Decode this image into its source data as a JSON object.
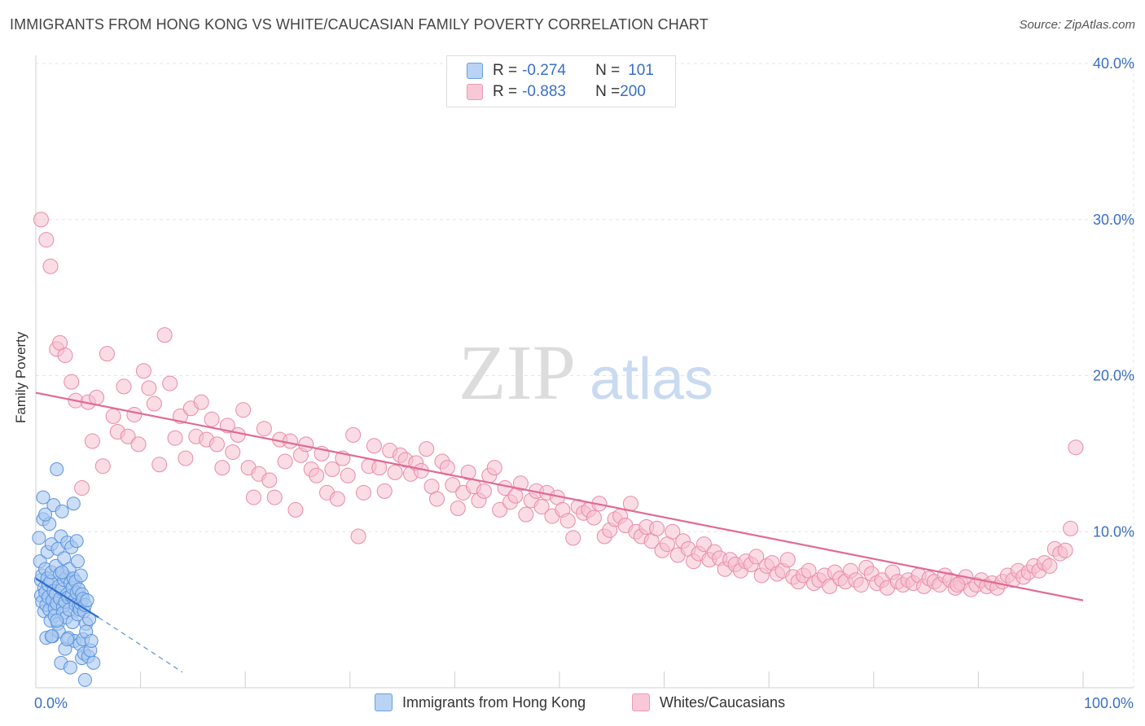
{
  "title": "IMMIGRANTS FROM HONG KONG VS WHITE/CAUCASIAN FAMILY POVERTY CORRELATION CHART",
  "source": "Source: ZipAtlas.com",
  "watermark": {
    "zip": "ZIP",
    "atlas": "atlas"
  },
  "colors": {
    "blue_fill": "#a8c8f0",
    "blue_stroke": "#5b93dc",
    "blue_line": "#2f6fd1",
    "pink_fill": "#f6bfd0",
    "pink_stroke": "#e98aa8",
    "pink_line": "#e06a96",
    "axis_text": "#3a6fc4",
    "grid": "#e4e4e4"
  },
  "legend": {
    "rows": [
      {
        "r_label": "R = ",
        "r_value": "-0.274",
        "n_label": "N = ",
        "n_value": "101"
      },
      {
        "r_label": "R = ",
        "r_value": "-0.883",
        "n_label": "N = ",
        "n_value": "200"
      }
    ]
  },
  "bottom_legend": {
    "series_blue": "Immigrants from Hong Kong",
    "series_pink": "Whites/Caucasians"
  },
  "chart_data": {
    "type": "scatter",
    "title": "IMMIGRANTS FROM HONG KONG VS WHITE/CAUCASIAN FAMILY POVERTY CORRELATION CHART",
    "xlabel": "",
    "ylabel": "Family Poverty",
    "xlim": [
      0,
      100
    ],
    "ylim": [
      0,
      40
    ],
    "x_tick_labels": [
      "0.0%",
      "100.0%"
    ],
    "y_ticks": [
      10,
      20,
      30,
      40
    ],
    "y_tick_labels": [
      "10.0%",
      "20.0%",
      "30.0%",
      "40.0%"
    ],
    "grid": true,
    "legend_position": "top-center",
    "series": [
      {
        "name": "Immigrants from Hong Kong",
        "r": -0.274,
        "n": 101,
        "trend": {
          "x": [
            0,
            6
          ],
          "y": [
            7.0,
            4.5
          ],
          "dashed_extension_to": [
            14,
            1.0
          ]
        },
        "points": [
          [
            0.3,
            9.6
          ],
          [
            0.4,
            8.1
          ],
          [
            0.5,
            6.9
          ],
          [
            0.5,
            5.9
          ],
          [
            0.6,
            7.2
          ],
          [
            0.6,
            5.5
          ],
          [
            0.7,
            12.2
          ],
          [
            0.7,
            10.8
          ],
          [
            0.8,
            6.4
          ],
          [
            0.8,
            4.9
          ],
          [
            0.9,
            7.6
          ],
          [
            0.9,
            6.1
          ],
          [
            1.0,
            5.3
          ],
          [
            1.0,
            3.2
          ],
          [
            1.1,
            8.7
          ],
          [
            1.1,
            7.0
          ],
          [
            1.2,
            6.6
          ],
          [
            1.2,
            5.8
          ],
          [
            1.3,
            10.5
          ],
          [
            1.3,
            5.0
          ],
          [
            1.4,
            6.8
          ],
          [
            1.4,
            4.3
          ],
          [
            1.5,
            9.2
          ],
          [
            1.5,
            7.4
          ],
          [
            1.6,
            5.6
          ],
          [
            1.6,
            3.3
          ],
          [
            1.7,
            11.7
          ],
          [
            1.7,
            6.2
          ],
          [
            1.8,
            5.1
          ],
          [
            1.8,
            4.6
          ],
          [
            1.9,
            7.8
          ],
          [
            1.9,
            6.0
          ],
          [
            2.0,
            14.0
          ],
          [
            2.0,
            5.4
          ],
          [
            2.1,
            8.9
          ],
          [
            2.1,
            4.1
          ],
          [
            2.2,
            6.5
          ],
          [
            2.2,
            3.6
          ],
          [
            2.3,
            7.3
          ],
          [
            2.3,
            5.7
          ],
          [
            2.4,
            9.7
          ],
          [
            2.4,
            1.6
          ],
          [
            2.5,
            11.3
          ],
          [
            2.5,
            6.3
          ],
          [
            2.6,
            5.2
          ],
          [
            2.6,
            4.8
          ],
          [
            2.7,
            8.3
          ],
          [
            2.7,
            6.9
          ],
          [
            2.8,
            5.5
          ],
          [
            2.8,
            2.5
          ],
          [
            2.9,
            7.1
          ],
          [
            2.9,
            4.5
          ],
          [
            3.0,
            9.3
          ],
          [
            3.0,
            6.0
          ],
          [
            3.1,
            5.8
          ],
          [
            3.1,
            3.2
          ],
          [
            3.2,
            7.6
          ],
          [
            3.2,
            5.0
          ],
          [
            3.3,
            6.7
          ],
          [
            3.3,
            1.3
          ],
          [
            3.4,
            9.0
          ],
          [
            3.4,
            5.9
          ],
          [
            3.5,
            6.4
          ],
          [
            3.5,
            4.2
          ],
          [
            3.6,
            11.8
          ],
          [
            3.6,
            7.0
          ],
          [
            3.7,
            5.6
          ],
          [
            3.7,
            3.0
          ],
          [
            3.8,
            6.8
          ],
          [
            3.8,
            5.3
          ],
          [
            3.9,
            9.4
          ],
          [
            3.9,
            6.1
          ],
          [
            4.0,
            8.1
          ],
          [
            4.0,
            4.7
          ],
          [
            4.1,
            6.3
          ],
          [
            4.1,
            5.2
          ],
          [
            4.2,
            5.0
          ],
          [
            4.2,
            2.8
          ],
          [
            4.3,
            7.2
          ],
          [
            4.3,
            5.4
          ],
          [
            4.4,
            6.0
          ],
          [
            4.4,
            1.9
          ],
          [
            4.5,
            5.7
          ],
          [
            4.5,
            3.1
          ],
          [
            4.6,
            4.9
          ],
          [
            4.6,
            2.2
          ],
          [
            4.7,
            5.3
          ],
          [
            4.7,
            0.5
          ],
          [
            4.8,
            4.1
          ],
          [
            4.8,
            3.6
          ],
          [
            4.9,
            5.6
          ],
          [
            5.0,
            2.0
          ],
          [
            5.1,
            4.4
          ],
          [
            5.2,
            2.4
          ],
          [
            5.3,
            3.0
          ],
          [
            5.5,
            1.6
          ],
          [
            0.9,
            11.1
          ],
          [
            1.5,
            3.3
          ],
          [
            2.0,
            4.3
          ],
          [
            3.0,
            3.1
          ],
          [
            2.5,
            7.4
          ]
        ]
      },
      {
        "name": "Whites/Caucasians",
        "r": -0.883,
        "n": 200,
        "trend": {
          "x": [
            0,
            100
          ],
          "y": [
            18.9,
            5.6
          ]
        },
        "points": [
          [
            0.5,
            30.0
          ],
          [
            1.0,
            28.7
          ],
          [
            1.4,
            27.0
          ],
          [
            2.0,
            21.7
          ],
          [
            2.3,
            22.1
          ],
          [
            2.8,
            21.3
          ],
          [
            3.4,
            19.6
          ],
          [
            3.8,
            18.4
          ],
          [
            4.4,
            12.8
          ],
          [
            5.0,
            18.3
          ],
          [
            5.4,
            15.8
          ],
          [
            5.8,
            18.6
          ],
          [
            6.4,
            14.2
          ],
          [
            6.8,
            21.4
          ],
          [
            7.4,
            17.4
          ],
          [
            7.8,
            16.4
          ],
          [
            8.4,
            19.3
          ],
          [
            8.8,
            16.1
          ],
          [
            9.4,
            17.5
          ],
          [
            9.8,
            15.6
          ],
          [
            10.3,
            20.3
          ],
          [
            10.8,
            19.2
          ],
          [
            11.3,
            18.2
          ],
          [
            11.8,
            14.3
          ],
          [
            12.3,
            22.6
          ],
          [
            12.8,
            19.5
          ],
          [
            13.3,
            16.0
          ],
          [
            13.8,
            17.4
          ],
          [
            14.3,
            14.7
          ],
          [
            14.8,
            17.9
          ],
          [
            15.3,
            16.1
          ],
          [
            15.8,
            18.3
          ],
          [
            16.3,
            15.9
          ],
          [
            16.8,
            17.2
          ],
          [
            17.3,
            15.6
          ],
          [
            17.8,
            14.1
          ],
          [
            18.3,
            16.8
          ],
          [
            18.8,
            15.1
          ],
          [
            19.3,
            16.2
          ],
          [
            19.8,
            17.8
          ],
          [
            20.3,
            14.1
          ],
          [
            20.8,
            12.2
          ],
          [
            21.3,
            13.7
          ],
          [
            21.8,
            16.6
          ],
          [
            22.3,
            13.3
          ],
          [
            22.8,
            12.2
          ],
          [
            23.3,
            15.9
          ],
          [
            23.8,
            14.5
          ],
          [
            24.3,
            15.8
          ],
          [
            24.8,
            11.4
          ],
          [
            25.3,
            14.9
          ],
          [
            25.8,
            15.6
          ],
          [
            26.3,
            14.0
          ],
          [
            26.8,
            13.6
          ],
          [
            27.3,
            15.0
          ],
          [
            27.8,
            12.5
          ],
          [
            28.3,
            14.0
          ],
          [
            28.8,
            12.1
          ],
          [
            29.3,
            14.7
          ],
          [
            29.8,
            13.6
          ],
          [
            30.3,
            16.2
          ],
          [
            30.8,
            9.7
          ],
          [
            31.3,
            12.5
          ],
          [
            31.8,
            14.2
          ],
          [
            32.3,
            15.5
          ],
          [
            32.8,
            14.1
          ],
          [
            33.3,
            12.6
          ],
          [
            33.8,
            15.2
          ],
          [
            34.3,
            13.8
          ],
          [
            34.8,
            14.9
          ],
          [
            35.3,
            14.6
          ],
          [
            35.8,
            13.7
          ],
          [
            36.3,
            14.4
          ],
          [
            36.8,
            13.9
          ],
          [
            37.3,
            15.3
          ],
          [
            37.8,
            12.9
          ],
          [
            38.3,
            12.1
          ],
          [
            38.8,
            14.5
          ],
          [
            39.3,
            14.1
          ],
          [
            39.8,
            13.0
          ],
          [
            40.3,
            11.5
          ],
          [
            40.8,
            12.5
          ],
          [
            41.3,
            13.8
          ],
          [
            41.8,
            12.9
          ],
          [
            42.3,
            12.0
          ],
          [
            42.8,
            12.6
          ],
          [
            43.3,
            13.6
          ],
          [
            43.8,
            14.1
          ],
          [
            44.3,
            11.4
          ],
          [
            44.8,
            12.8
          ],
          [
            45.3,
            11.9
          ],
          [
            45.8,
            12.3
          ],
          [
            46.3,
            13.1
          ],
          [
            46.8,
            11.1
          ],
          [
            47.3,
            12.0
          ],
          [
            47.8,
            12.6
          ],
          [
            48.3,
            11.6
          ],
          [
            48.8,
            12.5
          ],
          [
            49.3,
            11.0
          ],
          [
            49.8,
            12.2
          ],
          [
            50.3,
            11.4
          ],
          [
            50.8,
            10.7
          ],
          [
            51.3,
            9.6
          ],
          [
            51.8,
            11.6
          ],
          [
            52.3,
            11.2
          ],
          [
            52.8,
            11.4
          ],
          [
            53.3,
            10.9
          ],
          [
            53.8,
            11.8
          ],
          [
            54.3,
            9.7
          ],
          [
            54.8,
            10.1
          ],
          [
            55.3,
            10.8
          ],
          [
            55.8,
            11.0
          ],
          [
            56.3,
            10.4
          ],
          [
            56.8,
            11.8
          ],
          [
            57.3,
            10.0
          ],
          [
            57.8,
            9.7
          ],
          [
            58.3,
            10.3
          ],
          [
            58.8,
            9.4
          ],
          [
            59.3,
            10.2
          ],
          [
            59.8,
            8.8
          ],
          [
            60.3,
            9.2
          ],
          [
            60.8,
            10.0
          ],
          [
            61.3,
            8.5
          ],
          [
            61.8,
            9.4
          ],
          [
            62.3,
            8.9
          ],
          [
            62.8,
            8.1
          ],
          [
            63.3,
            8.6
          ],
          [
            63.8,
            9.2
          ],
          [
            64.3,
            8.2
          ],
          [
            64.8,
            8.7
          ],
          [
            65.3,
            8.3
          ],
          [
            65.8,
            7.6
          ],
          [
            66.3,
            8.2
          ],
          [
            66.8,
            7.9
          ],
          [
            67.3,
            7.5
          ],
          [
            67.8,
            8.1
          ],
          [
            68.3,
            7.9
          ],
          [
            68.8,
            8.4
          ],
          [
            69.3,
            7.2
          ],
          [
            69.8,
            7.8
          ],
          [
            70.3,
            8.0
          ],
          [
            70.8,
            7.3
          ],
          [
            71.3,
            7.5
          ],
          [
            71.8,
            8.2
          ],
          [
            72.3,
            7.1
          ],
          [
            72.8,
            6.8
          ],
          [
            73.3,
            7.2
          ],
          [
            73.8,
            7.5
          ],
          [
            74.3,
            6.7
          ],
          [
            74.8,
            6.9
          ],
          [
            75.3,
            7.2
          ],
          [
            75.8,
            6.5
          ],
          [
            76.3,
            7.4
          ],
          [
            76.8,
            7.0
          ],
          [
            77.3,
            6.8
          ],
          [
            77.8,
            7.5
          ],
          [
            78.3,
            6.9
          ],
          [
            78.8,
            6.6
          ],
          [
            79.3,
            7.7
          ],
          [
            79.8,
            7.3
          ],
          [
            80.3,
            6.7
          ],
          [
            80.8,
            6.9
          ],
          [
            81.3,
            6.4
          ],
          [
            81.8,
            7.4
          ],
          [
            82.3,
            6.8
          ],
          [
            82.8,
            6.6
          ],
          [
            83.3,
            6.9
          ],
          [
            83.8,
            6.7
          ],
          [
            84.3,
            7.2
          ],
          [
            84.8,
            6.5
          ],
          [
            85.3,
            7.0
          ],
          [
            85.8,
            6.8
          ],
          [
            86.3,
            6.6
          ],
          [
            86.8,
            7.2
          ],
          [
            87.3,
            6.9
          ],
          [
            87.8,
            6.4
          ],
          [
            88.3,
            6.7
          ],
          [
            88.8,
            7.1
          ],
          [
            89.3,
            6.3
          ],
          [
            89.8,
            6.6
          ],
          [
            90.3,
            6.9
          ],
          [
            90.8,
            6.5
          ],
          [
            91.3,
            6.7
          ],
          [
            91.8,
            6.4
          ],
          [
            92.3,
            6.8
          ],
          [
            92.8,
            7.2
          ],
          [
            93.3,
            6.9
          ],
          [
            93.8,
            7.5
          ],
          [
            94.3,
            7.1
          ],
          [
            94.8,
            7.4
          ],
          [
            95.3,
            7.8
          ],
          [
            95.8,
            7.5
          ],
          [
            96.3,
            8.0
          ],
          [
            96.8,
            7.8
          ],
          [
            97.3,
            8.9
          ],
          [
            97.8,
            8.6
          ],
          [
            98.3,
            8.8
          ],
          [
            98.8,
            10.2
          ],
          [
            99.3,
            15.4
          ],
          [
            88.0,
            6.6
          ]
        ]
      }
    ]
  }
}
